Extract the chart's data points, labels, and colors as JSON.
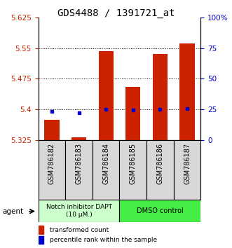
{
  "title": "GDS4488 / 1391721_at",
  "samples": [
    "GSM786182",
    "GSM786183",
    "GSM786184",
    "GSM786185",
    "GSM786186",
    "GSM786187"
  ],
  "red_values": [
    5.375,
    5.332,
    5.543,
    5.455,
    5.535,
    5.562
  ],
  "blue_values": [
    5.395,
    5.392,
    5.4,
    5.398,
    5.4,
    5.402
  ],
  "ylim": [
    5.325,
    5.625
  ],
  "yticks_left": [
    5.325,
    5.4,
    5.475,
    5.55,
    5.625
  ],
  "yticks_right_labels": [
    "0",
    "25",
    "50",
    "75",
    "100%"
  ],
  "bar_bottom": 5.325,
  "bar_color": "#cc2200",
  "dot_color": "#0000cc",
  "group1_label": "Notch inhibitor DAPT\n(10 μM.)",
  "group2_label": "DMSO control",
  "group1_color": "#ccffcc",
  "group2_color": "#44ee44",
  "agent_label": "agent",
  "legend_red": "transformed count",
  "legend_blue": "percentile rank within the sample",
  "bar_width": 0.55,
  "title_fontsize": 10,
  "tick_fontsize": 7.5,
  "label_fontsize": 7
}
